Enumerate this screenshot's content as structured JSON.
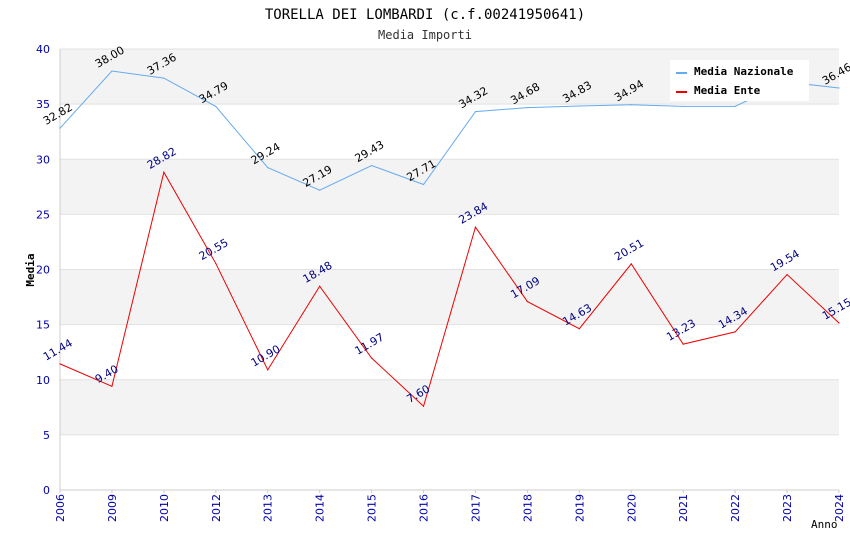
{
  "chart_data": {
    "type": "line",
    "title": "TORELLA DEI LOMBARDI (c.f.00241950641)",
    "subtitle": "Media Importi",
    "xlabel": "Anno",
    "ylabel": "Media",
    "ylim": [
      0,
      40
    ],
    "yticks": [
      0,
      5,
      10,
      15,
      20,
      25,
      30,
      35,
      40
    ],
    "grid": true,
    "legend_position": "top-right",
    "categories": [
      "2006",
      "2009",
      "2010",
      "2012",
      "2013",
      "2014",
      "2015",
      "2016",
      "2017",
      "2018",
      "2019",
      "2020",
      "2021",
      "2022",
      "2023",
      "2024"
    ],
    "series": [
      {
        "name": "Media Nazionale",
        "color": "#66aaee",
        "label_color": "#000000",
        "values": [
          32.82,
          38.0,
          37.36,
          34.79,
          29.24,
          27.19,
          29.43,
          27.71,
          34.32,
          34.68,
          34.83,
          34.94,
          34.8,
          34.8,
          37.0,
          36.46
        ],
        "labels": [
          "32.82",
          "38.00",
          "37.36",
          "34.79",
          "29.24",
          "27.19",
          "29.43",
          "27.71",
          "34.32",
          "34.68",
          "34.83",
          "34.94",
          "",
          "",
          "",
          "36.46"
        ]
      },
      {
        "name": "Media Ente",
        "color": "#ee0000",
        "label_color": "#000080",
        "values": [
          11.44,
          9.4,
          28.82,
          20.55,
          10.9,
          18.48,
          11.97,
          7.6,
          23.84,
          17.09,
          14.63,
          20.51,
          13.23,
          14.34,
          19.54,
          15.15
        ],
        "labels": [
          "11.44",
          "9.40",
          "28.82",
          "20.55",
          "10.90",
          "18.48",
          "11.97",
          "7.60",
          "23.84",
          "17.09",
          "14.63",
          "20.51",
          "13.23",
          "14.34",
          "19.54",
          "15.15"
        ]
      }
    ]
  }
}
